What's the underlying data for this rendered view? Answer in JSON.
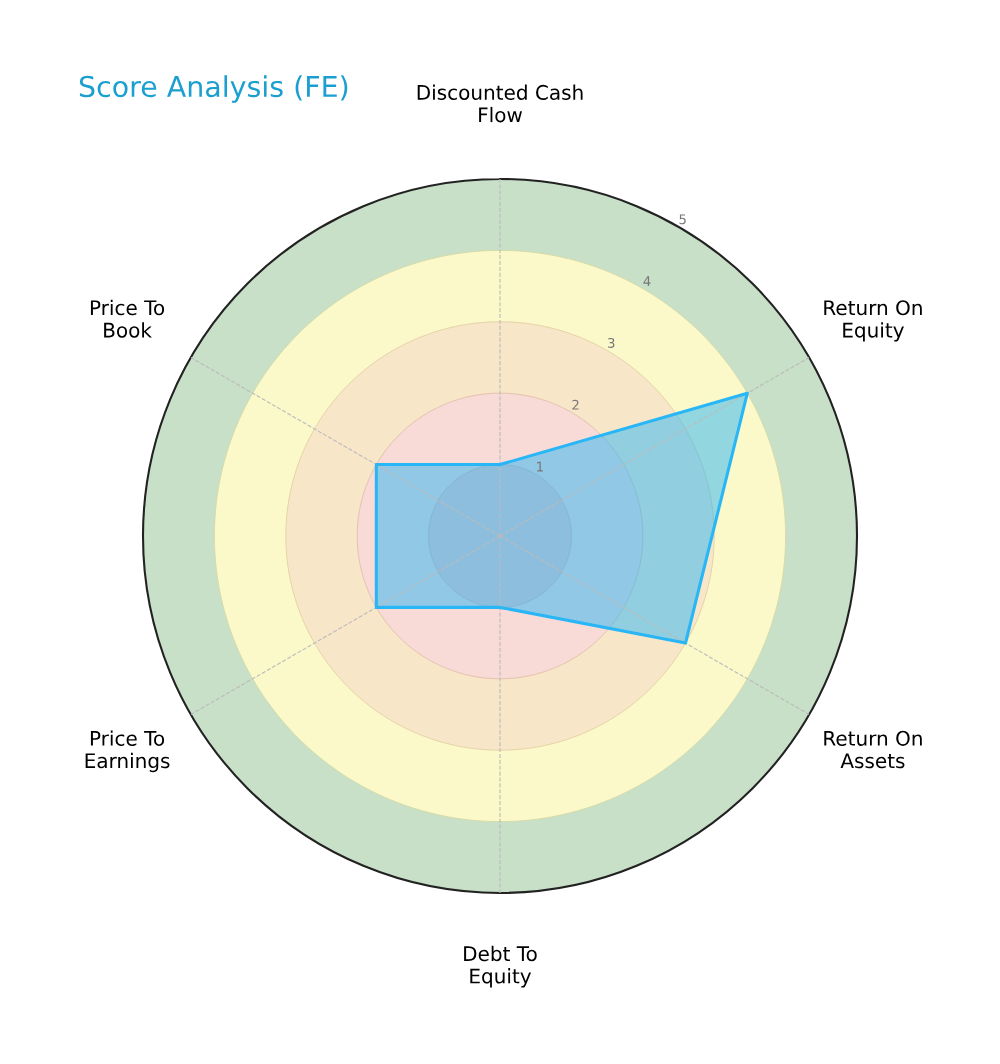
{
  "chart_data": {
    "type": "radar",
    "title": "Score Analysis (FE)",
    "categories": [
      "Discounted Cash\nFlow",
      "Return On\nEquity",
      "Return On\nAssets",
      "Debt To\nEquity",
      "Price To\nEarnings",
      "Price To\nBook"
    ],
    "series": [
      {
        "color": "#29b6f6",
        "values": [
          1,
          4,
          3,
          1,
          2,
          2
        ]
      }
    ],
    "ylim": [
      0,
      5
    ],
    "yticks": [
      1,
      2,
      3,
      4,
      5
    ],
    "grid": "x"
  }
}
